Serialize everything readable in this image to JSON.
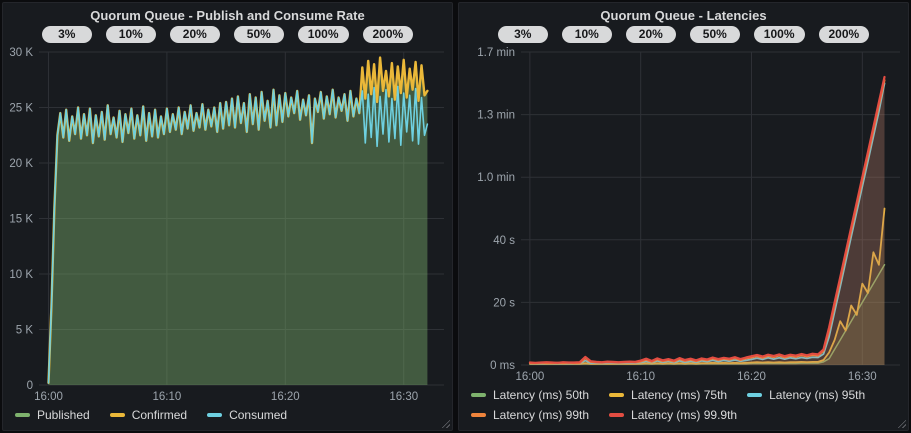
{
  "colors": {
    "page_bg": "#0b0c0e",
    "panel_bg": "#181b1f",
    "title_text": "#d8d9da",
    "axis_text": "#9da5ad",
    "grid_line": "#2e3136",
    "pill_bg": "#d8d9da",
    "pill_text": "#17181a",
    "green": "#7EB26D",
    "yellow": "#EAB839",
    "cyan": "#6ED0E0",
    "orange": "#EF843C",
    "red": "#E24D42"
  },
  "panels": [
    {
      "title": "Quorum Queue - Publish and Consume Rate",
      "annotations": [
        "3%",
        "10%",
        "20%",
        "50%",
        "100%",
        "200%"
      ]
    },
    {
      "title": "Quorum Queue - Latencies",
      "annotations": [
        "3%",
        "10%",
        "20%",
        "50%",
        "100%",
        "200%"
      ]
    }
  ],
  "chart_data": [
    {
      "type": "line",
      "title": "Quorum Queue - Publish and Consume Rate",
      "x_unit": "minutes after 16:00",
      "x_start": 0,
      "x_step": 0.25,
      "x_min": -0.8,
      "x_max": 33.4,
      "y_unit": "messages/s (thousands)",
      "y_max": 30,
      "grid": true,
      "legend_position": "bottom-left",
      "x_ticks": [
        {
          "v": 0,
          "label": "16:00"
        },
        {
          "v": 10,
          "label": "16:10"
        },
        {
          "v": 20,
          "label": "16:20"
        },
        {
          "v": 30,
          "label": "16:30"
        }
      ],
      "y_ticks": [
        {
          "v": 0,
          "label": "0"
        },
        {
          "v": 5,
          "label": "5 K"
        },
        {
          "v": 10,
          "label": "10 K"
        },
        {
          "v": 15,
          "label": "15 K"
        },
        {
          "v": 20,
          "label": "20 K"
        },
        {
          "v": 25,
          "label": "25 K"
        },
        {
          "v": 30,
          "label": "30 K"
        }
      ],
      "series": [
        {
          "name": "Published",
          "color": "#7EB26D",
          "width": 1.2,
          "fill_opacity": 0.42,
          "values": [
            0.2,
            7,
            16,
            22.5,
            24.5,
            22.3,
            24.8,
            22.0,
            24.2,
            22.6,
            25.0,
            22.2,
            24.4,
            22.5,
            24.9,
            21.8,
            24.3,
            22.4,
            24.6,
            22.1,
            25.2,
            22.6,
            24.1,
            22.3,
            24.7,
            21.9,
            24.4,
            22.7,
            24.9,
            22.2,
            24.3,
            22.5,
            25.1,
            22.0,
            24.5,
            22.4,
            24.8,
            22.3,
            24.2,
            22.6,
            24.9,
            22.8,
            24.4,
            23.0,
            25.0,
            22.6,
            24.6,
            23.1,
            25.2,
            22.9,
            24.5,
            23.2,
            25.3,
            23.0,
            24.8,
            23.3,
            25.0,
            22.8,
            25.4,
            23.1,
            25.5,
            23.4,
            25.8,
            23.2,
            26.0,
            23.6,
            25.4,
            22.8,
            26.2,
            23.5,
            25.9,
            23.0,
            26.4,
            23.8,
            25.6,
            23.2,
            26.6,
            23.4,
            26.1,
            23.7,
            26.3,
            24.2,
            25.9,
            24.5,
            26.5,
            23.9,
            25.7,
            24.3,
            26.1,
            21.8,
            25.8,
            24.6,
            26.4,
            24.0,
            26.0,
            24.4,
            26.6,
            24.1,
            25.9,
            24.7,
            26.2,
            23.8,
            26.5,
            24.2,
            25.8,
            24.5,
            28.6,
            25.8,
            29.2,
            26.2,
            28.9,
            25.5,
            29.5,
            26.5,
            28.3,
            26.0,
            29.0,
            25.7,
            28.7,
            26.3,
            29.3,
            25.9,
            28.5,
            26.6,
            29.1,
            25.6,
            28.8,
            26.1,
            26.5
          ]
        },
        {
          "name": "Confirmed",
          "color": "#EAB839",
          "width": 2.4,
          "fill_opacity": 0,
          "values": [
            0.2,
            7,
            16,
            22.5,
            24.5,
            22.3,
            24.8,
            22.0,
            24.2,
            22.6,
            25.0,
            22.2,
            24.4,
            22.5,
            24.9,
            21.8,
            24.3,
            22.4,
            24.6,
            22.1,
            25.2,
            22.6,
            24.1,
            22.3,
            24.7,
            21.9,
            24.4,
            22.7,
            24.9,
            22.2,
            24.3,
            22.5,
            25.1,
            22.0,
            24.5,
            22.4,
            24.8,
            22.3,
            24.2,
            22.6,
            24.9,
            22.8,
            24.4,
            23.0,
            25.0,
            22.6,
            24.6,
            23.1,
            25.2,
            22.9,
            24.5,
            23.2,
            25.3,
            23.0,
            24.8,
            23.3,
            25.0,
            22.8,
            25.4,
            23.1,
            25.5,
            23.4,
            25.8,
            23.2,
            26.0,
            23.6,
            25.4,
            22.8,
            26.2,
            23.5,
            25.9,
            23.0,
            26.4,
            23.8,
            25.6,
            23.2,
            26.6,
            23.4,
            26.1,
            23.7,
            26.3,
            24.2,
            25.9,
            24.5,
            26.5,
            23.9,
            25.7,
            24.3,
            26.1,
            21.8,
            25.8,
            24.6,
            26.4,
            24.0,
            26.0,
            24.4,
            26.6,
            24.1,
            25.9,
            24.7,
            26.2,
            23.8,
            26.5,
            24.2,
            25.8,
            24.5,
            28.6,
            25.8,
            29.2,
            26.2,
            28.9,
            25.5,
            29.5,
            26.5,
            28.3,
            26.0,
            29.0,
            25.7,
            28.7,
            26.3,
            29.3,
            25.9,
            28.5,
            26.6,
            29.1,
            25.6,
            28.8,
            26.1,
            26.5
          ]
        },
        {
          "name": "Consumed",
          "color": "#6ED0E0",
          "width": 1.6,
          "fill_opacity": 0,
          "values": [
            0.2,
            7,
            16,
            22.5,
            24.5,
            22.3,
            24.8,
            22.0,
            24.2,
            22.6,
            25.0,
            22.2,
            24.4,
            22.5,
            24.9,
            21.8,
            24.3,
            22.4,
            24.6,
            22.1,
            25.2,
            22.6,
            24.1,
            22.3,
            24.7,
            21.9,
            24.4,
            22.7,
            24.9,
            22.2,
            24.3,
            22.5,
            25.1,
            22.0,
            24.5,
            22.4,
            24.8,
            22.3,
            24.2,
            22.6,
            24.9,
            22.8,
            24.4,
            23.0,
            25.0,
            22.6,
            24.6,
            23.1,
            25.2,
            22.9,
            24.5,
            23.2,
            25.3,
            23.0,
            24.8,
            23.3,
            25.0,
            22.8,
            25.4,
            23.1,
            25.5,
            23.4,
            25.8,
            23.2,
            26.0,
            23.6,
            25.4,
            22.8,
            26.2,
            23.5,
            25.9,
            23.0,
            26.4,
            23.8,
            25.6,
            23.2,
            26.6,
            23.4,
            26.1,
            23.7,
            26.3,
            24.2,
            25.9,
            24.5,
            26.5,
            23.9,
            25.7,
            24.3,
            26.1,
            21.8,
            25.8,
            24.6,
            26.4,
            24.0,
            26.0,
            24.4,
            26.6,
            24.1,
            25.9,
            24.7,
            26.2,
            23.8,
            26.5,
            24.2,
            25.8,
            24.5,
            26.5,
            21.8,
            26.2,
            22.3,
            26.8,
            21.5,
            26.0,
            22.6,
            26.6,
            21.9,
            25.8,
            22.2,
            26.9,
            21.6,
            26.3,
            22.8,
            26.1,
            22.0,
            26.7,
            21.7,
            25.9,
            22.5,
            23.5
          ]
        }
      ]
    },
    {
      "type": "line",
      "title": "Quorum Queue - Latencies",
      "x_unit": "minutes after 16:00",
      "x_start": 0,
      "x_step": 0.5,
      "x_min": -0.8,
      "x_max": 33.4,
      "y_unit": "seconds",
      "y_max": 100,
      "grid": true,
      "legend_position": "bottom-left",
      "x_ticks": [
        {
          "v": 0,
          "label": "16:00"
        },
        {
          "v": 10,
          "label": "16:10"
        },
        {
          "v": 20,
          "label": "16:20"
        },
        {
          "v": 30,
          "label": "16:30"
        }
      ],
      "y_ticks": [
        {
          "v": 0,
          "label": "0 ms"
        },
        {
          "v": 20,
          "label": "20 s"
        },
        {
          "v": 40,
          "label": "40 s"
        },
        {
          "v": 60,
          "label": "1.0 min"
        },
        {
          "v": 80,
          "label": "1.3 min"
        },
        {
          "v": 100,
          "label": "1.7 min"
        }
      ],
      "series": [
        {
          "name": "Latency (ms) 50th",
          "color": "#7EB26D",
          "width": 1.5,
          "fill_opacity": 0.12,
          "values": [
            0.3,
            0.3,
            0.3,
            0.3,
            0.3,
            0.3,
            0.3,
            0.3,
            0.3,
            0.3,
            0.4,
            0.3,
            0.3,
            0.3,
            0.3,
            0.3,
            0.3,
            0.3,
            0.3,
            0.3,
            0.3,
            0.4,
            0.3,
            0.4,
            0.3,
            0.4,
            0.3,
            0.4,
            0.3,
            0.4,
            0.3,
            0.4,
            0.4,
            0.4,
            0.4,
            0.4,
            0.4,
            0.4,
            0.4,
            0.4,
            0.5,
            0.5,
            0.5,
            0.5,
            0.5,
            0.5,
            0.5,
            0.5,
            0.5,
            0.6,
            0.6,
            0.6,
            0.6,
            1.0,
            2,
            5,
            8,
            11,
            14,
            17,
            20,
            23,
            26,
            29,
            32
          ]
        },
        {
          "name": "Latency (ms) 75th",
          "color": "#EAB839",
          "width": 1.8,
          "fill_opacity": 0.12,
          "values": [
            0.4,
            0.4,
            0.4,
            0.4,
            0.4,
            0.4,
            0.4,
            0.4,
            0.4,
            0.4,
            0.6,
            0.4,
            0.4,
            0.4,
            0.4,
            0.4,
            0.4,
            0.4,
            0.4,
            0.4,
            0.5,
            0.6,
            0.5,
            0.6,
            0.5,
            0.6,
            0.5,
            0.6,
            0.5,
            0.6,
            0.5,
            0.6,
            0.6,
            0.7,
            0.6,
            0.7,
            0.6,
            0.7,
            0.6,
            0.7,
            0.8,
            0.9,
            0.8,
            0.9,
            0.8,
            0.9,
            0.8,
            0.9,
            0.9,
            1.0,
            0.9,
            1.0,
            1.0,
            1.6,
            4,
            8,
            14,
            11,
            19,
            16,
            26,
            23,
            36,
            32,
            50
          ]
        },
        {
          "name": "Latency (ms) 95th",
          "color": "#6ED0E0",
          "width": 1.8,
          "fill_opacity": 0.12,
          "values": [
            0.5,
            0.5,
            0.5,
            0.5,
            0.5,
            0.5,
            0.5,
            0.5,
            0.5,
            0.5,
            1.4,
            0.6,
            0.6,
            0.5,
            0.6,
            0.6,
            0.5,
            0.6,
            0.6,
            0.6,
            0.8,
            1.2,
            0.8,
            1.3,
            0.9,
            1.2,
            0.8,
            1.3,
            0.9,
            1.2,
            0.9,
            1.3,
            1.1,
            1.5,
            1.1,
            1.5,
            1.2,
            1.6,
            1.2,
            1.5,
            1.8,
            2.2,
            1.8,
            2.3,
            1.9,
            2.3,
            1.9,
            2.3,
            2.0,
            2.4,
            2.1,
            2.5,
            2.4,
            3.5,
            9,
            17,
            25,
            33,
            41,
            49,
            57,
            65,
            73,
            81,
            90
          ]
        },
        {
          "name": "Latency (ms) 99th",
          "color": "#EF843C",
          "width": 2.0,
          "fill_opacity": 0.12,
          "values": [
            0.6,
            0.6,
            0.7,
            0.6,
            0.6,
            0.7,
            0.6,
            0.7,
            0.6,
            0.6,
            2.2,
            1.0,
            0.8,
            0.7,
            0.9,
            0.8,
            0.7,
            0.8,
            0.9,
            0.8,
            1.1,
            1.7,
            1.0,
            1.8,
            1.2,
            1.6,
            1.1,
            1.9,
            1.3,
            1.7,
            1.2,
            1.8,
            1.5,
            2.1,
            1.6,
            2.0,
            1.7,
            2.2,
            1.6,
            2.1,
            2.4,
            2.8,
            2.3,
            2.9,
            2.5,
            3.0,
            2.4,
            2.9,
            2.6,
            3.1,
            2.7,
            3.2,
            3.0,
            4.5,
            11,
            19,
            27,
            35,
            43,
            51,
            59,
            67,
            75,
            83,
            91
          ]
        },
        {
          "name": "Latency (ms) 99.9th",
          "color": "#E24D42",
          "width": 2.2,
          "fill_opacity": 0.12,
          "values": [
            0.8,
            0.7,
            0.8,
            0.9,
            0.8,
            0.7,
            0.9,
            0.8,
            0.8,
            0.9,
            2.6,
            1.2,
            1.0,
            0.9,
            1.1,
            1.0,
            0.9,
            1.0,
            1.1,
            1.0,
            1.4,
            2.0,
            1.3,
            2.1,
            1.5,
            1.9,
            1.4,
            2.2,
            1.6,
            2.0,
            1.5,
            2.1,
            1.8,
            2.4,
            1.9,
            2.3,
            2.0,
            2.5,
            1.9,
            2.4,
            2.8,
            3.2,
            2.7,
            3.3,
            2.9,
            3.4,
            2.8,
            3.3,
            3.0,
            3.5,
            3.1,
            3.6,
            3.4,
            5.0,
            12,
            20,
            28,
            36,
            44,
            52,
            60,
            68,
            76,
            84,
            92
          ]
        }
      ]
    }
  ]
}
